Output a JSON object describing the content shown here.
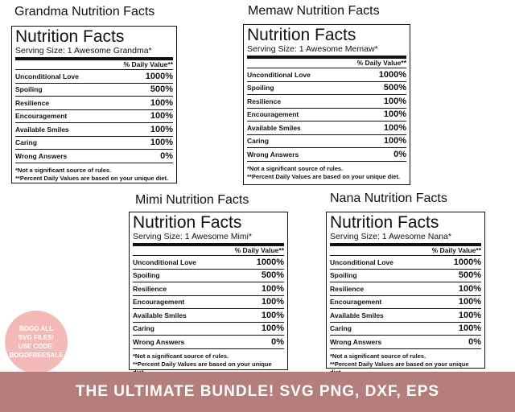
{
  "labels": [
    {
      "heading": "Grandma Nutrition Facts",
      "title": "Nutrition Facts",
      "serving": "Serving Size: 1 Awesome Grandma*",
      "dv_header": "% Daily Value**",
      "rows": [
        [
          "Unconditional Love",
          "1000%"
        ],
        [
          "Spoiling",
          "500%"
        ],
        [
          "Resilience",
          "100%"
        ],
        [
          "Encouragement",
          "100%"
        ],
        [
          "Available Smiles",
          "100%"
        ],
        [
          "Caring",
          "100%"
        ],
        [
          "Wrong Answers",
          "0%"
        ]
      ],
      "notes": [
        "*Not a significant source of rules.",
        "**Percent Daily Values are based on your unique diet."
      ]
    },
    {
      "heading": "Memaw Nutrition Facts",
      "title": "Nutrition Facts",
      "serving": "Serving Size: 1 Awesome Memaw*",
      "dv_header": "% Daily Value**",
      "rows": [
        [
          "Unconditional Love",
          "1000%"
        ],
        [
          "Spoiling",
          "500%"
        ],
        [
          "Resilience",
          "100%"
        ],
        [
          "Encouragement",
          "100%"
        ],
        [
          "Available Smiles",
          "100%"
        ],
        [
          "Caring",
          "100%"
        ],
        [
          "Wrong Answers",
          "0%"
        ]
      ],
      "notes": [
        "*Not a significant source of rules.",
        "**Percent Daily Values are based on your unique diet."
      ]
    },
    {
      "heading": "Mimi Nutrition Facts",
      "title": "Nutrition Facts",
      "serving": "Serving Size: 1 Awesome Mimi*",
      "dv_header": "% Daily Value**",
      "rows": [
        [
          "Unconditional Love",
          "1000%"
        ],
        [
          "Spoiling",
          "500%"
        ],
        [
          "Resilience",
          "100%"
        ],
        [
          "Encouragement",
          "100%"
        ],
        [
          "Available Smiles",
          "100%"
        ],
        [
          "Caring",
          "100%"
        ],
        [
          "Wrong Answers",
          "0%"
        ]
      ],
      "notes": [
        "*Not a significant source of rules.",
        "**Percent Daily Values are based on your unique diet."
      ]
    },
    {
      "heading": "Nana Nutrition Facts",
      "title": "Nutrition Facts",
      "serving": "Serving Size: 1 Awesome Nana*",
      "dv_header": "% Daily Value**",
      "rows": [
        [
          "Unconditional Love",
          "1000%"
        ],
        [
          "Spoiling",
          "500%"
        ],
        [
          "Resilience",
          "100%"
        ],
        [
          "Encouragement",
          "100%"
        ],
        [
          "Available Smiles",
          "100%"
        ],
        [
          "Caring",
          "100%"
        ],
        [
          "Wrong Answers",
          "0%"
        ]
      ],
      "notes": [
        "*Not a significant source of rules.",
        "**Percent Daily Values are based on your unique diet."
      ]
    }
  ],
  "badge": [
    "BOGO ALL",
    "SVG FILES!",
    "USE CODE:",
    "BOGOFREESALE"
  ],
  "banner": "THE ULTIMATE BUNDLE! SVG PNG, DXF, EPS"
}
